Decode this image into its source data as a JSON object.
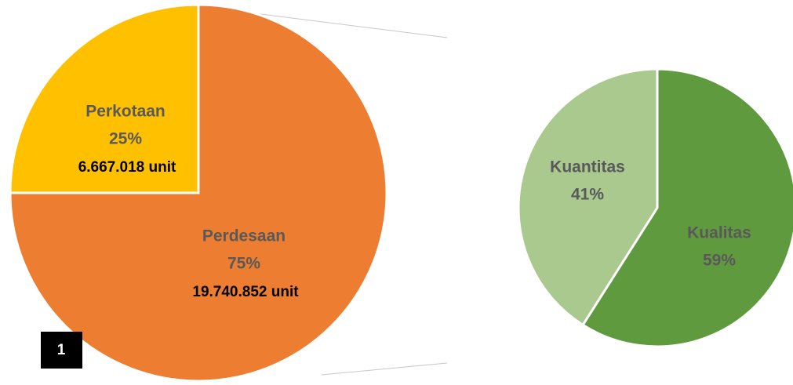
{
  "chart_data": [
    {
      "type": "pie",
      "categories": [
        "Perkotaan",
        "Perdesaan"
      ],
      "values": [
        25,
        75
      ],
      "value_labels": [
        "25%",
        "75%"
      ],
      "counts": [
        6667018,
        19740852
      ],
      "count_labels": [
        "6.667.018 unit",
        "19.740.852 unit"
      ],
      "colors": [
        "#ffc000",
        "#ed7d31"
      ],
      "annotation": "1"
    },
    {
      "type": "pie",
      "categories": [
        "Kuantitas",
        "Kualitas"
      ],
      "values": [
        41,
        59
      ],
      "value_labels": [
        "41%",
        "59%"
      ],
      "colors": [
        "#a9c98f",
        "#5f9b3e"
      ]
    }
  ]
}
